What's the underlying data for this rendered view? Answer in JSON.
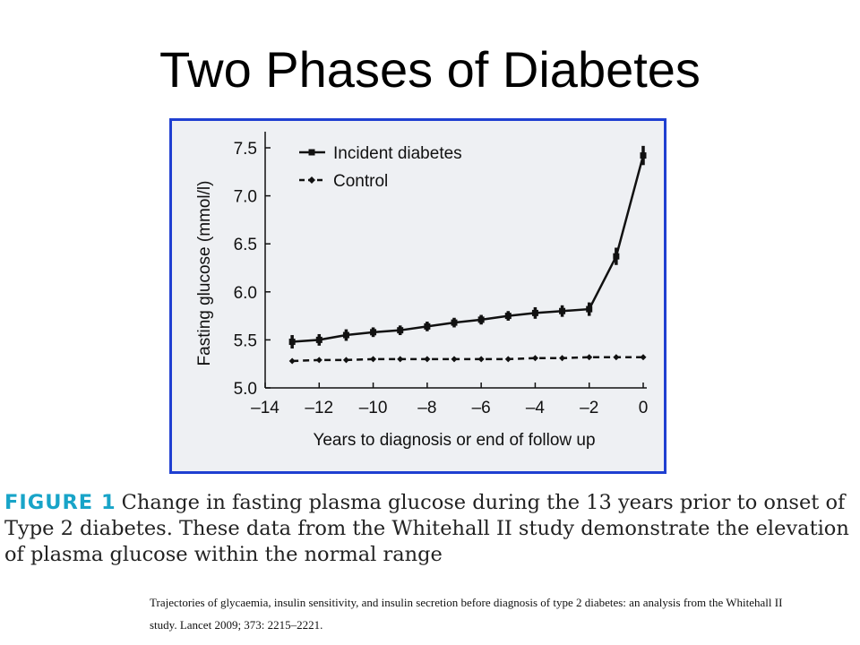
{
  "slide": {
    "title": "Two Phases of Diabetes"
  },
  "caption": {
    "label": "FIGURE 1",
    "text": "Change in fasting plasma glucose during the 13 years prior to onset of Type 2 diabetes. These data from the Whitehall II study demonstrate the elevation of plasma glucose within the normal range"
  },
  "citation": {
    "text": "Trajectories of glycaemia, insulin sensitivity, and insulin secretion before diagnosis of type 2 diabetes: an analysis from the Whitehall II study. Lancet 2009; 373: 2215–2221."
  },
  "chart_data": {
    "type": "line",
    "title": "",
    "xlabel": "Years to diagnosis or end of follow up",
    "ylabel": "Fasting glucose (mmol/l)",
    "xlim": [
      -14,
      0
    ],
    "ylim": [
      5.0,
      7.5
    ],
    "xticks": [
      -14,
      -12,
      -10,
      -8,
      -6,
      -4,
      -2,
      0
    ],
    "xtick_labels": [
      "–14",
      "–12",
      "–10",
      "–8",
      "–6",
      "–4",
      "–2",
      "0"
    ],
    "yticks": [
      5.0,
      5.5,
      6.0,
      6.5,
      7.0,
      7.5
    ],
    "ytick_labels": [
      "5.0",
      "5.5",
      "6.0",
      "6.5",
      "7.0",
      "7.5"
    ],
    "legend_position": "top-left",
    "series": [
      {
        "name": "Incident diabetes",
        "style": "solid",
        "marker": "square",
        "x": [
          -13,
          -12,
          -11,
          -10,
          -9,
          -8,
          -7,
          -6,
          -5,
          -4,
          -3,
          -2,
          -1,
          0
        ],
        "y": [
          5.48,
          5.5,
          5.55,
          5.58,
          5.6,
          5.64,
          5.68,
          5.71,
          5.75,
          5.78,
          5.8,
          5.82,
          6.37,
          7.42
        ],
        "err": [
          0.07,
          0.06,
          0.06,
          0.05,
          0.05,
          0.05,
          0.05,
          0.05,
          0.05,
          0.06,
          0.06,
          0.07,
          0.09,
          0.1
        ]
      },
      {
        "name": "Control",
        "style": "dashed",
        "marker": "diamond",
        "x": [
          -13,
          -12,
          -11,
          -10,
          -9,
          -8,
          -7,
          -6,
          -5,
          -4,
          -3,
          -2,
          -1,
          0
        ],
        "y": [
          5.28,
          5.29,
          5.29,
          5.3,
          5.3,
          5.3,
          5.3,
          5.3,
          5.3,
          5.31,
          5.31,
          5.32,
          5.32,
          5.32
        ],
        "err": [
          0.01,
          0.01,
          0.01,
          0.01,
          0.01,
          0.01,
          0.01,
          0.01,
          0.01,
          0.01,
          0.01,
          0.01,
          0.01,
          0.01
        ]
      }
    ],
    "colors": {
      "frame_border": "#1f3fd1",
      "plot_background": "#eef0f3",
      "series": "#111111",
      "caption_label": "#18a4c8"
    }
  }
}
